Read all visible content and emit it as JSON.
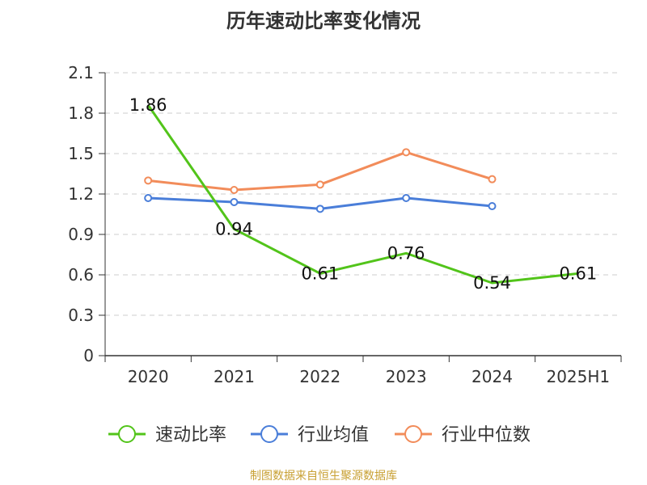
{
  "title": "历年速动比率变化情况",
  "source": "制图数据来自恒生聚源数据库",
  "colors": {
    "quick_ratio": "#52c41a",
    "industry_mean": "#4a7ed9",
    "industry_median": "#f28c5a",
    "grid": "#cccccc",
    "axis": "#333333",
    "source": "#c8a033"
  },
  "chart_data": {
    "type": "line",
    "title": "历年速动比率变化情况",
    "categories": [
      "2020",
      "2021",
      "2022",
      "2023",
      "2024",
      "2025H1"
    ],
    "ylim": [
      0,
      2.1
    ],
    "yticks": [
      "0",
      "0.3",
      "0.6",
      "0.9",
      "1.2",
      "1.5",
      "1.8",
      "2.1"
    ],
    "grid": true,
    "legend_position": "bottom",
    "series": [
      {
        "name": "速动比率",
        "color": "#52c41a",
        "values": [
          1.86,
          0.94,
          0.61,
          0.76,
          0.54,
          0.61
        ],
        "data_labels": [
          "1.86",
          "0.94",
          "0.61",
          "0.76",
          "0.54",
          "0.61"
        ],
        "markers": false
      },
      {
        "name": "行业均值",
        "color": "#4a7ed9",
        "values": [
          1.17,
          1.14,
          1.09,
          1.17,
          1.11,
          null
        ],
        "markers": true
      },
      {
        "name": "行业中位数",
        "color": "#f28c5a",
        "values": [
          1.3,
          1.23,
          1.27,
          1.51,
          1.31,
          null
        ],
        "markers": true
      }
    ]
  }
}
